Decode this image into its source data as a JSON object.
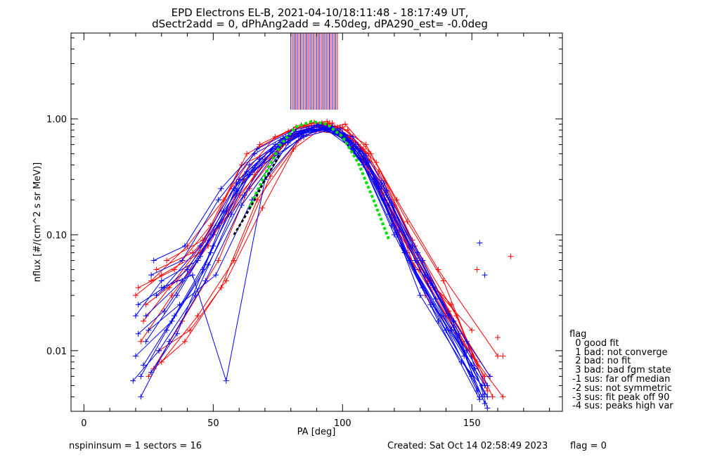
{
  "chart_data": {
    "type": "scatter",
    "title": "EPD Electrons EL-B, 2021-04-10/18:11:48 - 18:17:49 UT,",
    "subtitle": "dSectr2add = 0, dPhAng2add = 4.50deg, dPA290_est=  -0.0deg",
    "xlabel": "PA [deg]",
    "ylabel": "nflux [#/(cm^2 s sr MeV)]",
    "xlim": [
      -5,
      185
    ],
    "ylim": [
      0.003,
      5.5
    ],
    "yscale": "log",
    "xticks": [
      0,
      50,
      100,
      150
    ],
    "yticks": [
      0.01,
      0.1,
      1.0
    ],
    "ytick_labels": [
      "0.01",
      "0.10",
      "1.00"
    ],
    "colors": {
      "red": "#ff0000",
      "blue": "#0000ff",
      "green": "#00e000",
      "black": "#000000"
    },
    "vertical_lines_top": {
      "x_range": [
        80,
        98
      ],
      "y_range": [
        1.2,
        5.5
      ],
      "count": 30
    },
    "series": [
      {
        "color": "red",
        "style": "line+plus",
        "x": [
          20,
          30,
          45,
          60,
          75,
          85,
          95,
          105,
          115,
          125,
          140,
          155
        ],
        "y": [
          0.03,
          0.045,
          0.07,
          0.22,
          0.55,
          0.85,
          0.92,
          0.6,
          0.25,
          0.07,
          0.02,
          0.006
        ]
      },
      {
        "color": "red",
        "style": "line+plus",
        "x": [
          22,
          34,
          48,
          62,
          78,
          88,
          98,
          108,
          120,
          135,
          150
        ],
        "y": [
          0.012,
          0.03,
          0.08,
          0.3,
          0.62,
          0.88,
          0.8,
          0.45,
          0.12,
          0.035,
          0.009
        ]
      },
      {
        "color": "red",
        "style": "line+plus",
        "x": [
          25,
          38,
          52,
          66,
          82,
          92,
          102,
          112,
          126,
          142,
          158
        ],
        "y": [
          0.006,
          0.018,
          0.06,
          0.33,
          0.75,
          0.92,
          0.7,
          0.3,
          0.06,
          0.025,
          0.004
        ]
      },
      {
        "color": "red",
        "style": "line+plus",
        "x": [
          28,
          42,
          56,
          70,
          84,
          94,
          104,
          116,
          130,
          148
        ],
        "y": [
          0.05,
          0.07,
          0.15,
          0.45,
          0.88,
          0.95,
          0.65,
          0.22,
          0.05,
          0.01
        ]
      },
      {
        "color": "red",
        "style": "line+plus",
        "x": [
          24,
          36,
          50,
          64,
          80,
          90,
          100,
          110,
          124,
          138,
          152
        ],
        "y": [
          0.025,
          0.04,
          0.1,
          0.25,
          0.7,
          0.85,
          0.85,
          0.5,
          0.1,
          0.03,
          0.008
        ]
      },
      {
        "color": "red",
        "style": "line+plus",
        "x": [
          30,
          44,
          58,
          72,
          86,
          96,
          106,
          118,
          132,
          146,
          162
        ],
        "y": [
          0.008,
          0.02,
          0.06,
          0.32,
          0.8,
          0.92,
          0.6,
          0.2,
          0.03,
          0.012,
          0.004
        ]
      },
      {
        "color": "red",
        "style": "line+plus",
        "x": [
          26,
          40,
          54,
          68,
          82,
          92,
          102,
          114,
          128,
          144,
          156
        ],
        "y": [
          0.04,
          0.08,
          0.2,
          0.6,
          0.85,
          0.9,
          0.8,
          0.35,
          0.08,
          0.02,
          0.0045
        ]
      },
      {
        "color": "red",
        "style": "line+plus",
        "x": [
          23,
          33,
          47,
          61,
          77,
          87,
          97,
          107,
          119,
          133,
          150
        ],
        "y": [
          0.018,
          0.035,
          0.09,
          0.4,
          0.6,
          0.8,
          0.75,
          0.55,
          0.15,
          0.04,
          0.015
        ]
      },
      {
        "color": "red",
        "style": "line+plus",
        "x": [
          29,
          41,
          55,
          69,
          83,
          93,
          103,
          113,
          127,
          141,
          157
        ],
        "y": [
          0.01,
          0.015,
          0.04,
          0.17,
          0.65,
          0.88,
          0.7,
          0.42,
          0.09,
          0.022,
          0.006
        ]
      },
      {
        "color": "red",
        "style": "line+plus",
        "x": [
          32,
          46,
          60,
          74,
          88,
          98,
          108,
          120,
          134,
          150
        ],
        "y": [
          0.06,
          0.09,
          0.3,
          0.7,
          0.92,
          0.85,
          0.55,
          0.18,
          0.04,
          0.009
        ]
      },
      {
        "color": "red",
        "style": "line+plus",
        "x": [
          21,
          35,
          49,
          63,
          79,
          89,
          99,
          109,
          121,
          137,
          160
        ],
        "y": [
          0.035,
          0.05,
          0.12,
          0.5,
          0.78,
          0.93,
          0.85,
          0.6,
          0.2,
          0.05,
          0.009
        ]
      },
      {
        "color": "red",
        "style": "line+plus",
        "x": [
          27,
          39,
          53,
          67,
          81,
          91,
          101,
          111,
          125,
          139,
          155
        ],
        "y": [
          0.007,
          0.012,
          0.035,
          0.2,
          0.55,
          0.8,
          0.9,
          0.5,
          0.13,
          0.04,
          0.005
        ]
      },
      {
        "color": "blue",
        "style": "line+plus",
        "x": [
          20,
          30,
          44,
          58,
          74,
          84,
          94,
          104,
          116,
          128,
          142,
          156
        ],
        "y": [
          0.02,
          0.04,
          0.06,
          0.25,
          0.6,
          0.75,
          0.8,
          0.55,
          0.2,
          0.05,
          0.015,
          0.004
        ]
      },
      {
        "color": "blue",
        "style": "line+plus",
        "x": [
          22,
          32,
          46,
          60,
          76,
          86,
          96,
          106,
          118,
          130,
          146,
          154
        ],
        "y": [
          0.006,
          0.015,
          0.05,
          0.3,
          0.65,
          0.8,
          0.85,
          0.5,
          0.15,
          0.03,
          0.008,
          0.005
        ]
      },
      {
        "color": "blue",
        "style": "line+plus",
        "x": [
          24,
          36,
          50,
          64,
          78,
          88,
          98,
          108,
          120,
          134,
          150
        ],
        "y": [
          0.012,
          0.03,
          0.1,
          0.4,
          0.7,
          0.82,
          0.75,
          0.4,
          0.1,
          0.025,
          0.006
        ]
      },
      {
        "color": "blue",
        "style": "line+plus",
        "x": [
          26,
          38,
          52,
          66,
          80,
          90,
          100,
          112,
          124,
          138,
          152
        ],
        "y": [
          0.045,
          0.06,
          0.2,
          0.5,
          0.75,
          0.85,
          0.7,
          0.3,
          0.07,
          0.02,
          0.0045
        ]
      },
      {
        "color": "blue",
        "style": "line+plus",
        "x": [
          19,
          29,
          43,
          57,
          73,
          83,
          93,
          103,
          115,
          127,
          141,
          155
        ],
        "y": [
          0.0055,
          0.01,
          0.03,
          0.15,
          0.55,
          0.72,
          0.85,
          0.65,
          0.28,
          0.08,
          0.02,
          0.0035
        ]
      },
      {
        "color": "blue",
        "style": "line+plus",
        "x": [
          28,
          40,
          54,
          68,
          82,
          92,
          102,
          114,
          126,
          140,
          154
        ],
        "y": [
          0.03,
          0.05,
          0.16,
          0.45,
          0.78,
          0.88,
          0.65,
          0.25,
          0.06,
          0.015,
          0.004
        ]
      },
      {
        "color": "blue",
        "style": "line+plus",
        "x": [
          21,
          31,
          45,
          59,
          75,
          85,
          95,
          105,
          117,
          129,
          143,
          157
        ],
        "y": [
          0.025,
          0.035,
          0.08,
          0.28,
          0.5,
          0.7,
          0.8,
          0.6,
          0.22,
          0.06,
          0.018,
          0.006
        ]
      },
      {
        "color": "blue",
        "style": "line+plus",
        "x": [
          23,
          35,
          49,
          63,
          77,
          87,
          97,
          107,
          119,
          131,
          147
        ],
        "y": [
          0.0075,
          0.02,
          0.07,
          0.35,
          0.68,
          0.8,
          0.78,
          0.45,
          0.12,
          0.035,
          0.009
        ]
      },
      {
        "color": "blue",
        "style": "line+plus",
        "x": [
          25,
          37,
          51,
          65,
          79,
          89,
          99,
          109,
          121,
          135,
          151
        ],
        "y": [
          0.015,
          0.025,
          0.045,
          0.2,
          0.62,
          0.85,
          0.82,
          0.48,
          0.1,
          0.025,
          0.007
        ]
      },
      {
        "color": "blue",
        "style": "line+plus",
        "x": [
          27,
          39,
          53,
          67,
          81,
          91,
          101,
          111,
          123,
          137,
          153
        ],
        "y": [
          0.06,
          0.08,
          0.25,
          0.55,
          0.8,
          0.9,
          0.72,
          0.35,
          0.08,
          0.018,
          0.0038
        ]
      },
      {
        "color": "blue",
        "style": "line+plus",
        "x": [
          20,
          34,
          48,
          62,
          76,
          86,
          96,
          106,
          118,
          132,
          148,
          156
        ],
        "y": [
          0.009,
          0.018,
          0.055,
          0.22,
          0.58,
          0.78,
          0.86,
          0.55,
          0.18,
          0.045,
          0.012,
          0.0032
        ]
      },
      {
        "color": "blue",
        "style": "line+plus",
        "x": [
          30,
          42,
          55,
          70,
          84,
          94,
          104,
          116,
          128,
          142,
          155
        ],
        "y": [
          0.035,
          0.045,
          0.0055,
          0.3,
          0.7,
          0.86,
          0.7,
          0.28,
          0.06,
          0.015,
          0.005
        ]
      },
      {
        "color": "blue",
        "style": "line+plus",
        "x": [
          22,
          33,
          47,
          61,
          75,
          85,
          95,
          105,
          117,
          131,
          145,
          153
        ],
        "y": [
          0.004,
          0.012,
          0.04,
          0.18,
          0.48,
          0.72,
          0.84,
          0.58,
          0.24,
          0.06,
          0.014,
          0.004
        ]
      },
      {
        "color": "blue",
        "style": "line+plus",
        "x": [
          24,
          38,
          52,
          66,
          80,
          90,
          100,
          110,
          122,
          136,
          150
        ],
        "y": [
          0.02,
          0.04,
          0.12,
          0.38,
          0.72,
          0.88,
          0.76,
          0.42,
          0.11,
          0.028,
          0.0075
        ]
      },
      {
        "color": "blue",
        "style": "line+plus",
        "x": [
          26,
          36,
          50,
          64,
          78,
          88,
          98,
          108,
          120,
          134,
          148,
          156
        ],
        "y": [
          0.0065,
          0.014,
          0.08,
          0.33,
          0.66,
          0.82,
          0.8,
          0.5,
          0.14,
          0.038,
          0.01,
          0.005
        ]
      },
      {
        "color": "blue",
        "style": "line+plus",
        "x": [
          21,
          31,
          45,
          59,
          73,
          83,
          93,
          103,
          115,
          129,
          143,
          155
        ],
        "y": [
          0.014,
          0.022,
          0.065,
          0.24,
          0.52,
          0.74,
          0.82,
          0.62,
          0.26,
          0.07,
          0.016,
          0.0042
        ]
      },
      {
        "color": "green",
        "style": "dashed-fit",
        "x": [
          64,
          70,
          76,
          82,
          88,
          94,
          100,
          106,
          112,
          118
        ],
        "y": [
          0.17,
          0.33,
          0.6,
          0.85,
          0.95,
          0.9,
          0.7,
          0.42,
          0.2,
          0.09
        ]
      },
      {
        "color": "black",
        "style": "dashed-fit",
        "x": [
          58,
          62,
          66,
          70,
          76
        ],
        "y": [
          0.1,
          0.14,
          0.2,
          0.3,
          0.5
        ]
      }
    ],
    "outliers": [
      {
        "color": "blue",
        "x": 153,
        "y": 0.085
      },
      {
        "color": "red",
        "x": 165,
        "y": 0.065
      },
      {
        "color": "red",
        "x": 152,
        "y": 0.05
      },
      {
        "color": "blue",
        "x": 155,
        "y": 0.045
      },
      {
        "color": "red",
        "x": 160,
        "y": 0.013
      },
      {
        "color": "red",
        "x": 162,
        "y": 0.009
      }
    ]
  },
  "legend": {
    "title": "flag",
    "items": [
      "  0 good fit",
      "  1 bad: not converge",
      "  2 bad: no fit",
      "  3 bad: bad fgm state",
      " -1 sus: far off median",
      " -2 sus: not symmetric",
      " -3 sus: fit peak off 90",
      " -4 sus: peaks high var"
    ]
  },
  "footer": {
    "left": "nspininsum =  1  sectors = 16",
    "created": "Created: Sat Oct 14 02:58:49 2023",
    "flag": "flag = 0"
  }
}
